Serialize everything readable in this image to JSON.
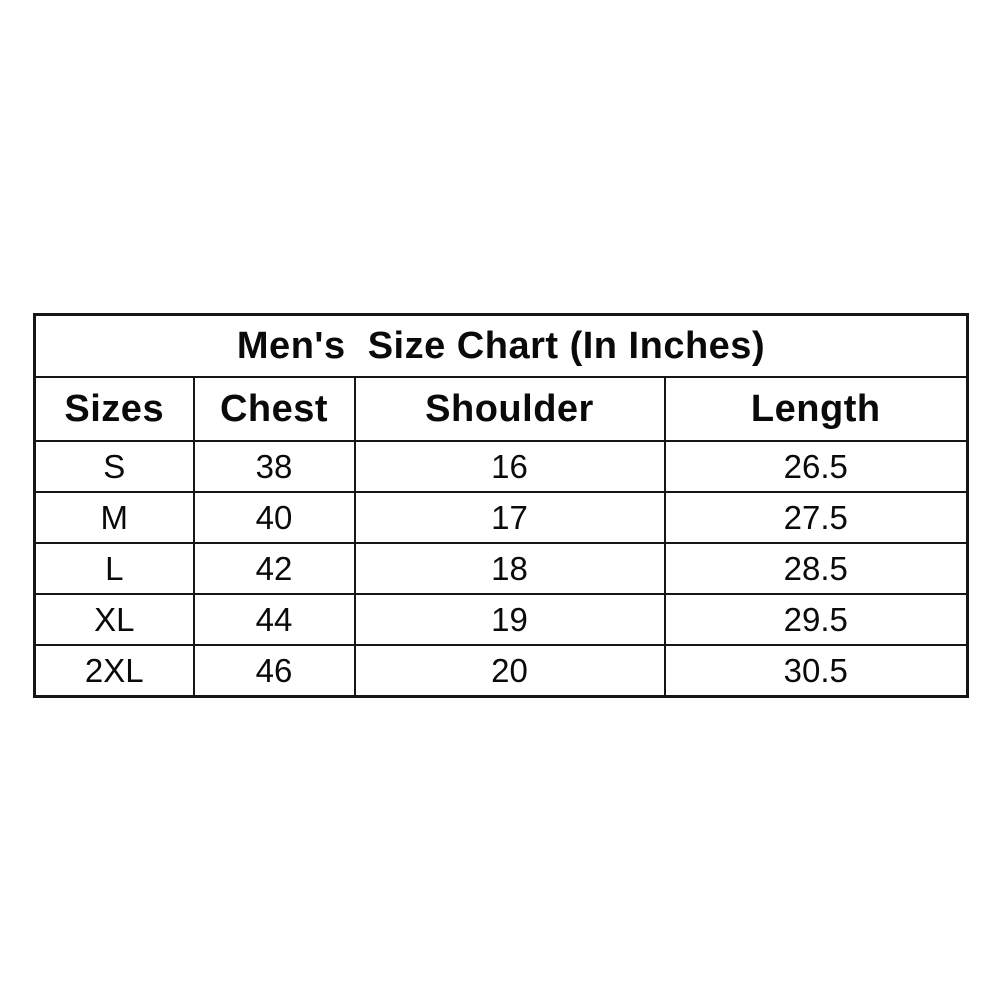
{
  "colors": {
    "background": "#ffffff",
    "border": "#161616",
    "text": "#0a0a0a"
  },
  "table": {
    "title": "Men's  Size Chart (In Inches)",
    "columns": [
      "Sizes",
      "Chest",
      "Shoulder",
      "Length"
    ],
    "rows": [
      [
        "S",
        "38",
        "16",
        "26.5"
      ],
      [
        "M",
        "40",
        "17",
        "27.5"
      ],
      [
        "L",
        "42",
        "18",
        "28.5"
      ],
      [
        "XL",
        "44",
        "19",
        "29.5"
      ],
      [
        "2XL",
        "46",
        "20",
        "30.5"
      ]
    ]
  },
  "chart_data": {
    "type": "table",
    "title": "Men's  Size Chart (In Inches)",
    "columns": [
      "Sizes",
      "Chest",
      "Shoulder",
      "Length"
    ],
    "rows": [
      {
        "size": "S",
        "chest": 38,
        "shoulder": 16,
        "length": 26.5
      },
      {
        "size": "M",
        "chest": 40,
        "shoulder": 17,
        "length": 27.5
      },
      {
        "size": "L",
        "chest": 42,
        "shoulder": 18,
        "length": 28.5
      },
      {
        "size": "XL",
        "chest": 44,
        "shoulder": 19,
        "length": 29.5
      },
      {
        "size": "2XL",
        "chest": 46,
        "shoulder": 20,
        "length": 30.5
      }
    ],
    "units": "inches"
  }
}
